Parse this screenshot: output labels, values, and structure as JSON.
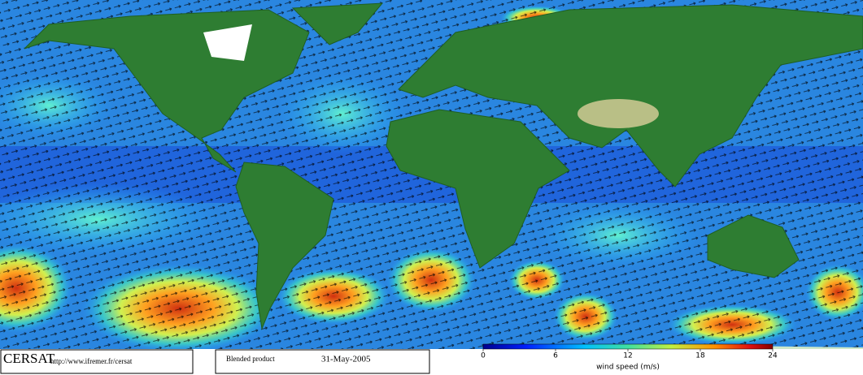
{
  "footer": {
    "logo": "CERSAT",
    "url": "http://www.ifremer.fr/cersat",
    "product": "Blended product",
    "date": "31-May-2005"
  },
  "colorbar": {
    "lim": [
      0,
      24
    ],
    "ticks": [
      0,
      6,
      12,
      18,
      24
    ],
    "label": "wind speed (m/s)"
  }
}
